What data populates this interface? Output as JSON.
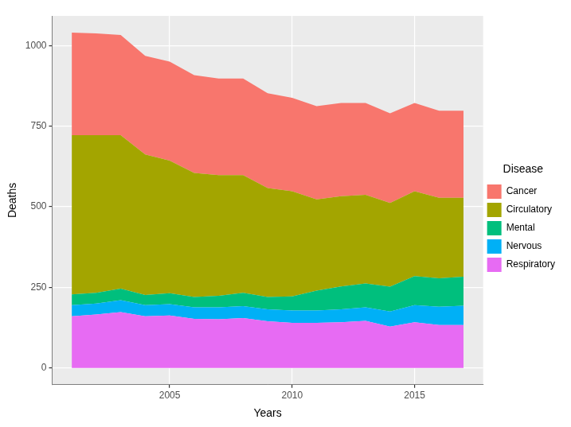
{
  "chart_data": {
    "type": "area",
    "stacked": true,
    "x_label": "Years",
    "y_label": "Deaths",
    "legend_title": "Disease",
    "legend": "right",
    "grid": true,
    "x": [
      2001,
      2002,
      2003,
      2004,
      2005,
      2006,
      2007,
      2008,
      2009,
      2010,
      2011,
      2012,
      2013,
      2014,
      2015,
      2016,
      2017
    ],
    "xlim": [
      2000.2,
      2017.8
    ],
    "xticks": [
      2005,
      2010,
      2015
    ],
    "ylim": [
      -52,
      1092
    ],
    "yticks": [
      0,
      250,
      500,
      750,
      1000
    ],
    "series": [
      {
        "name": "Cancer",
        "color": "#F8766D",
        "values": [
          318,
          316,
          311,
          306,
          307,
          303,
          300,
          300,
          294,
          290,
          289,
          289,
          285,
          278,
          274,
          270,
          270
        ]
      },
      {
        "name": "Circulatory",
        "color": "#A3A500",
        "values": [
          494,
          489,
          476,
          436,
          411,
          385,
          374,
          365,
          338,
          326,
          283,
          280,
          275,
          260,
          263,
          250,
          245
        ]
      },
      {
        "name": "Mental",
        "color": "#00BF7D",
        "values": [
          33,
          33,
          36,
          31,
          34,
          32,
          36,
          41,
          38,
          44,
          62,
          71,
          74,
          77,
          90,
          88,
          90
        ]
      },
      {
        "name": "Nervous",
        "color": "#00B0F6",
        "values": [
          35,
          34,
          37,
          35,
          35,
          36,
          37,
          37,
          37,
          38,
          38,
          40,
          42,
          47,
          53,
          57,
          60
        ]
      },
      {
        "name": "Respiratory",
        "color": "#E76BF3",
        "values": [
          160,
          166,
          173,
          160,
          163,
          152,
          151,
          155,
          145,
          140,
          140,
          142,
          146,
          128,
          142,
          133,
          133
        ]
      }
    ]
  }
}
